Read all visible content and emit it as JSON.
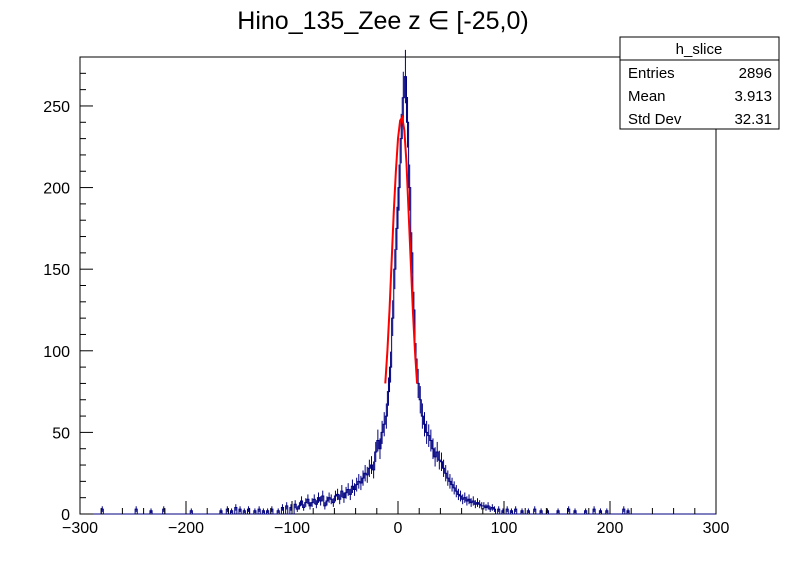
{
  "chart_data": {
    "type": "histogram",
    "title": "Hino_135_Zee z  ∈ [-25,0)",
    "xlabel": "",
    "ylabel": "",
    "xlim": [
      -300,
      300
    ],
    "ylim": [
      0,
      280
    ],
    "x_ticks": [
      -300,
      -200,
      -100,
      0,
      100,
      200,
      300
    ],
    "y_ticks": [
      0,
      50,
      100,
      150,
      200,
      250
    ],
    "grid": false,
    "stats_box": {
      "name": "h_slice",
      "rows": [
        {
          "label": "Entries",
          "value": "2896"
        },
        {
          "label": "Mean",
          "value": "3.913"
        },
        {
          "label": "Std Dev",
          "value": "32.31"
        }
      ]
    },
    "series": [
      {
        "kind": "histogram",
        "color": "#000080",
        "bin_width": 2,
        "bins": [
          [
            -280,
            3
          ],
          [
            -248,
            3
          ],
          [
            -234,
            2
          ],
          [
            -222,
            3
          ],
          [
            -196,
            2
          ],
          [
            -168,
            2
          ],
          [
            -162,
            3
          ],
          [
            -158,
            2
          ],
          [
            -154,
            4
          ],
          [
            -150,
            3
          ],
          [
            -146,
            2
          ],
          [
            -142,
            3
          ],
          [
            -136,
            2
          ],
          [
            -132,
            3
          ],
          [
            -128,
            2
          ],
          [
            -124,
            2
          ],
          [
            -120,
            3
          ],
          [
            -114,
            2
          ],
          [
            -110,
            4
          ],
          [
            -106,
            5
          ],
          [
            -102,
            4
          ],
          [
            -98,
            6
          ],
          [
            -96,
            3
          ],
          [
            -94,
            5
          ],
          [
            -92,
            8
          ],
          [
            -90,
            4
          ],
          [
            -88,
            7
          ],
          [
            -86,
            9
          ],
          [
            -84,
            5
          ],
          [
            -82,
            7
          ],
          [
            -80,
            9
          ],
          [
            -78,
            6
          ],
          [
            -76,
            10
          ],
          [
            -74,
            8
          ],
          [
            -72,
            11
          ],
          [
            -70,
            5
          ],
          [
            -68,
            8
          ],
          [
            -66,
            10
          ],
          [
            -64,
            9
          ],
          [
            -62,
            7
          ],
          [
            -60,
            11
          ],
          [
            -58,
            12
          ],
          [
            -56,
            9
          ],
          [
            -54,
            14
          ],
          [
            -52,
            10
          ],
          [
            -50,
            13
          ],
          [
            -48,
            15
          ],
          [
            -46,
            12
          ],
          [
            -44,
            17
          ],
          [
            -42,
            15
          ],
          [
            -40,
            18
          ],
          [
            -38,
            20
          ],
          [
            -36,
            19
          ],
          [
            -34,
            22
          ],
          [
            -32,
            25
          ],
          [
            -30,
            24
          ],
          [
            -28,
            28
          ],
          [
            -26,
            30
          ],
          [
            -24,
            27
          ],
          [
            -22,
            38
          ],
          [
            -20,
            45
          ],
          [
            -18,
            40
          ],
          [
            -16,
            50
          ],
          [
            -14,
            55
          ],
          [
            -12,
            60
          ],
          [
            -10,
            75
          ],
          [
            -8,
            90
          ],
          [
            -6,
            120
          ],
          [
            -4,
            150
          ],
          [
            -2,
            175
          ],
          [
            0,
            200
          ],
          [
            2,
            230
          ],
          [
            4,
            255
          ],
          [
            6,
            268
          ],
          [
            8,
            240
          ],
          [
            10,
            200
          ],
          [
            12,
            160
          ],
          [
            14,
            125
          ],
          [
            16,
            95
          ],
          [
            18,
            80
          ],
          [
            20,
            70
          ],
          [
            22,
            60
          ],
          [
            24,
            55
          ],
          [
            26,
            50
          ],
          [
            28,
            48
          ],
          [
            30,
            45
          ],
          [
            32,
            40
          ],
          [
            34,
            35
          ],
          [
            36,
            38
          ],
          [
            38,
            33
          ],
          [
            40,
            32
          ],
          [
            42,
            28
          ],
          [
            44,
            25
          ],
          [
            46,
            22
          ],
          [
            48,
            20
          ],
          [
            50,
            18
          ],
          [
            52,
            16
          ],
          [
            54,
            14
          ],
          [
            56,
            12
          ],
          [
            58,
            11
          ],
          [
            60,
            9
          ],
          [
            62,
            10
          ],
          [
            64,
            8
          ],
          [
            66,
            9
          ],
          [
            68,
            7
          ],
          [
            70,
            8
          ],
          [
            72,
            6
          ],
          [
            74,
            7
          ],
          [
            76,
            6
          ],
          [
            78,
            5
          ],
          [
            80,
            5
          ],
          [
            82,
            4
          ],
          [
            84,
            5
          ],
          [
            86,
            3
          ],
          [
            88,
            4
          ],
          [
            90,
            3
          ],
          [
            94,
            3
          ],
          [
            98,
            2
          ],
          [
            102,
            3
          ],
          [
            106,
            2
          ],
          [
            110,
            3
          ],
          [
            116,
            2
          ],
          [
            122,
            2
          ],
          [
            128,
            3
          ],
          [
            134,
            2
          ],
          [
            140,
            2
          ],
          [
            150,
            2
          ],
          [
            160,
            3
          ],
          [
            166,
            2
          ],
          [
            176,
            2
          ],
          [
            184,
            3
          ],
          [
            190,
            2
          ],
          [
            196,
            2
          ],
          [
            212,
            3
          ],
          [
            216,
            2
          ]
        ]
      },
      {
        "kind": "fit",
        "color": "#ff0000",
        "x": [
          -12,
          -10,
          -8,
          -6,
          -4,
          -2,
          0,
          2,
          4,
          6,
          8,
          10,
          12,
          14,
          16,
          18
        ],
        "y": [
          80,
          100,
          125,
          155,
          185,
          210,
          230,
          241,
          243,
          235,
          215,
          185,
          155,
          125,
          100,
          80
        ]
      }
    ]
  }
}
